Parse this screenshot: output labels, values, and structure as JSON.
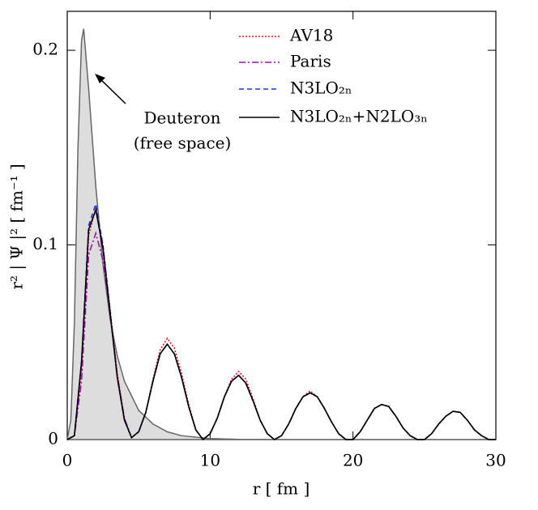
{
  "chart_data": {
    "type": "line",
    "xlabel": "r   [ fm ]",
    "ylabel": "r² | Ψ |² [ fm⁻¹ ]",
    "annotation": [
      "Deuteron",
      "(free space)"
    ],
    "legend": "upper right",
    "xlim": [
      0,
      30
    ],
    "xticks": [
      0,
      10,
      20,
      30
    ],
    "ylim": [
      0,
      0.22
    ],
    "yticks": [
      0,
      0.1,
      0.2
    ],
    "x": [
      0,
      0.5,
      1,
      1.5,
      2,
      2.5,
      3,
      3.5,
      4,
      4.5,
      5,
      5.5,
      6,
      6.5,
      7,
      7.5,
      8,
      8.5,
      9,
      9.5,
      10,
      10.5,
      11,
      11.5,
      12,
      12.5,
      13,
      13.5,
      14,
      14.5,
      15,
      15.5,
      16,
      16.5,
      17,
      17.5,
      18,
      18.5,
      19,
      19.5,
      20,
      20.5,
      21,
      21.5,
      22,
      22.5,
      23,
      23.5,
      24,
      24.5,
      25,
      25.5,
      26,
      26.5,
      27,
      27.5,
      28,
      28.5,
      29,
      29.5,
      30
    ],
    "area": {
      "color": "#666666",
      "fill": "#dddddd",
      "x": [
        0,
        0.25,
        0.5,
        0.75,
        1,
        1.15,
        1.5,
        2,
        2.5,
        3,
        3.5,
        4,
        5,
        6,
        7,
        8,
        10,
        12,
        15,
        30
      ],
      "values": [
        0,
        0.01,
        0.06,
        0.15,
        0.205,
        0.211,
        0.18,
        0.13,
        0.09,
        0.062,
        0.043,
        0.03,
        0.015,
        0.008,
        0.004,
        0.002,
        0.0005,
        0.0001,
        0,
        0
      ]
    },
    "series": [
      {
        "name": "AV18",
        "color": "#e8141c",
        "style": "dotted",
        "values": [
          0,
          0.002,
          0.035,
          0.105,
          0.119,
          0.1,
          0.067,
          0.034,
          0.011,
          0.001,
          0.004,
          0.014,
          0.031,
          0.046,
          0.052,
          0.047,
          0.034,
          0.018,
          0.005,
          0,
          0.003,
          0.011,
          0.022,
          0.031,
          0.035,
          0.031,
          0.021,
          0.01,
          0.003,
          0,
          0.002,
          0.008,
          0.016,
          0.022,
          0.025,
          0.022,
          0.016,
          0.009,
          0.003,
          0,
          0,
          0.004,
          0.01,
          0.016,
          0.018,
          0.017,
          0.012,
          0.006,
          0.002,
          0,
          0,
          0.003,
          0.008,
          0.012,
          0.0145,
          0.014,
          0.01,
          0.005,
          0.002,
          0,
          0
        ]
      },
      {
        "name": "Paris",
        "color": "#9a10b0",
        "style": "dashdot",
        "values": [
          0,
          0.002,
          0.03,
          0.095,
          0.106,
          0.092,
          0.064,
          0.033,
          0.011,
          0.001,
          0.004,
          0.014,
          0.03,
          0.044,
          0.049,
          0.044,
          0.032,
          0.017,
          0.005,
          0,
          0.003,
          0.011,
          0.022,
          0.03,
          0.033,
          0.029,
          0.02,
          0.01,
          0.003,
          0,
          0.002,
          0.008,
          0.016,
          0.022,
          0.024,
          0.022,
          0.016,
          0.009,
          0.003,
          0,
          0,
          0.004,
          0.01,
          0.016,
          0.018,
          0.017,
          0.012,
          0.006,
          0.002,
          0,
          0,
          0.003,
          0.008,
          0.012,
          0.0145,
          0.014,
          0.01,
          0.005,
          0.002,
          0,
          0
        ]
      },
      {
        "name": "N3LO₂ₙ",
        "color": "#1a35e0",
        "style": "dashed",
        "values": [
          0,
          0.002,
          0.04,
          0.11,
          0.121,
          0.1,
          0.066,
          0.032,
          0.01,
          0.001,
          0.004,
          0.014,
          0.03,
          0.044,
          0.049,
          0.044,
          0.032,
          0.017,
          0.005,
          0,
          0.003,
          0.011,
          0.022,
          0.03,
          0.033,
          0.029,
          0.02,
          0.01,
          0.003,
          0,
          0.002,
          0.008,
          0.016,
          0.022,
          0.024,
          0.022,
          0.016,
          0.009,
          0.003,
          0,
          0,
          0.004,
          0.01,
          0.016,
          0.018,
          0.017,
          0.012,
          0.006,
          0.002,
          0,
          0,
          0.003,
          0.008,
          0.012,
          0.0145,
          0.014,
          0.01,
          0.005,
          0.002,
          0,
          0
        ]
      },
      {
        "name": "N3LO₂ₙ+N2LO₃ₙ",
        "color": "#000000",
        "style": "solid",
        "values": [
          0,
          0.002,
          0.04,
          0.108,
          0.118,
          0.098,
          0.065,
          0.032,
          0.01,
          0.001,
          0.004,
          0.014,
          0.03,
          0.044,
          0.049,
          0.044,
          0.032,
          0.017,
          0.005,
          0,
          0.003,
          0.011,
          0.022,
          0.03,
          0.033,
          0.029,
          0.02,
          0.01,
          0.003,
          0,
          0.002,
          0.008,
          0.016,
          0.022,
          0.024,
          0.022,
          0.016,
          0.009,
          0.003,
          0,
          0,
          0.004,
          0.01,
          0.016,
          0.018,
          0.017,
          0.012,
          0.006,
          0.002,
          0,
          0,
          0.003,
          0.008,
          0.012,
          0.0145,
          0.014,
          0.01,
          0.005,
          0.002,
          0,
          0
        ]
      }
    ]
  }
}
